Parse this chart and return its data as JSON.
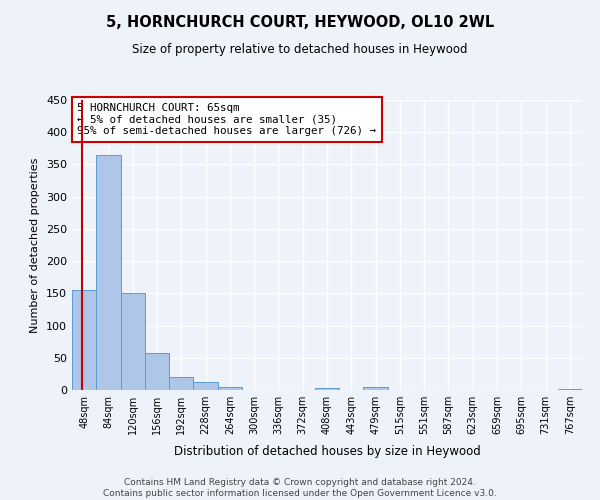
{
  "title": "5, HORNCHURCH COURT, HEYWOOD, OL10 2WL",
  "subtitle": "Size of property relative to detached houses in Heywood",
  "xlabel": "Distribution of detached houses by size in Heywood",
  "ylabel": "Number of detached properties",
  "bar_labels": [
    "48sqm",
    "84sqm",
    "120sqm",
    "156sqm",
    "192sqm",
    "228sqm",
    "264sqm",
    "300sqm",
    "336sqm",
    "372sqm",
    "408sqm",
    "443sqm",
    "479sqm",
    "515sqm",
    "551sqm",
    "587sqm",
    "623sqm",
    "659sqm",
    "695sqm",
    "731sqm",
    "767sqm"
  ],
  "bar_values": [
    155,
    365,
    150,
    58,
    20,
    13,
    4,
    0,
    0,
    0,
    3,
    0,
    4,
    0,
    0,
    0,
    0,
    0,
    0,
    0,
    2
  ],
  "bar_color": "#aec6e8",
  "bar_edge_color": "#5b9bd5",
  "ylim": [
    0,
    450
  ],
  "yticks": [
    0,
    50,
    100,
    150,
    200,
    250,
    300,
    350,
    400,
    450
  ],
  "vline_color": "#cc0000",
  "annotation_title": "5 HORNCHURCH COURT: 65sqm",
  "annotation_line1": "← 5% of detached houses are smaller (35)",
  "annotation_line2": "95% of semi-detached houses are larger (726) →",
  "annotation_box_color": "#ffffff",
  "annotation_box_edgecolor": "#cc0000",
  "footer_line1": "Contains HM Land Registry data © Crown copyright and database right 2024.",
  "footer_line2": "Contains public sector information licensed under the Open Government Licence v3.0.",
  "bg_color": "#eef2f9",
  "grid_color": "#ffffff"
}
